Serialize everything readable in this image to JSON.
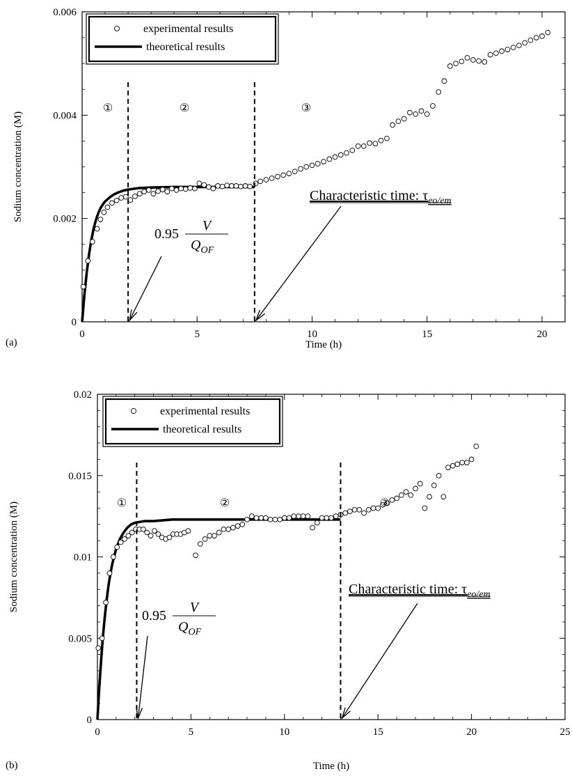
{
  "chart_data": [
    {
      "panel_label": "(a)",
      "type": "scatter",
      "title": "",
      "xlabel": "Time (h)",
      "ylabel": "Sodium concentration (M)",
      "xlim": [
        0,
        21
      ],
      "ylim": [
        0,
        0.006
      ],
      "xticks": [
        "0",
        "5",
        "10",
        "15",
        "20"
      ],
      "yticks": [
        "0",
        "0.002",
        "0.004",
        "0.006"
      ],
      "legend": {
        "position": "top-left",
        "entries": [
          "experimental results",
          "theoretical results"
        ]
      },
      "regions": [
        "①",
        "②",
        "③"
      ],
      "vlines": [
        2.0,
        7.5
      ],
      "annotations": {
        "fraction": {
          "coef": "0.95",
          "num": "V",
          "den": "Q",
          "den_sub": "OF",
          "arrow_to_x": 2.0
        },
        "characteristic": {
          "text": "Characteristic time: ",
          "symbol": "τ",
          "sub": "eo/em",
          "arrow_to_x": 7.5
        }
      },
      "series": [
        {
          "name": "experimental results",
          "style": "open-circle",
          "points": [
            [
              0.05,
              0.00068
            ],
            [
              0.25,
              0.00118
            ],
            [
              0.45,
              0.00155
            ],
            [
              0.65,
              0.0018
            ],
            [
              0.8,
              0.00198
            ],
            [
              0.95,
              0.00212
            ],
            [
              1.1,
              0.00222
            ],
            [
              1.3,
              0.0023
            ],
            [
              1.5,
              0.00235
            ],
            [
              1.7,
              0.0024
            ],
            [
              1.9,
              0.00242
            ],
            [
              2.1,
              0.00236
            ],
            [
              2.3,
              0.00243
            ],
            [
              2.5,
              0.00248
            ],
            [
              2.7,
              0.00252
            ],
            [
              2.9,
              0.00255
            ],
            [
              3.1,
              0.00248
            ],
            [
              3.3,
              0.00253
            ],
            [
              3.5,
              0.00256
            ],
            [
              3.7,
              0.00252
            ],
            [
              3.9,
              0.00258
            ],
            [
              4.1,
              0.00255
            ],
            [
              4.3,
              0.00258
            ],
            [
              4.5,
              0.00257
            ],
            [
              4.7,
              0.00259
            ],
            [
              4.9,
              0.00258
            ],
            [
              5.1,
              0.00268
            ],
            [
              5.3,
              0.00265
            ],
            [
              5.5,
              0.00261
            ],
            [
              5.7,
              0.00258
            ],
            [
              5.9,
              0.00263
            ],
            [
              6.1,
              0.00262
            ],
            [
              6.3,
              0.00264
            ],
            [
              6.5,
              0.00263
            ],
            [
              6.7,
              0.00263
            ],
            [
              6.9,
              0.00262
            ],
            [
              7.1,
              0.00263
            ],
            [
              7.3,
              0.00262
            ],
            [
              7.55,
              0.00268
            ],
            [
              7.75,
              0.00272
            ],
            [
              8.0,
              0.00275
            ],
            [
              8.25,
              0.00278
            ],
            [
              8.5,
              0.00281
            ],
            [
              8.75,
              0.00284
            ],
            [
              9.0,
              0.00287
            ],
            [
              9.25,
              0.00291
            ],
            [
              9.5,
              0.00296
            ],
            [
              9.75,
              0.003
            ],
            [
              10.0,
              0.00303
            ],
            [
              10.25,
              0.00306
            ],
            [
              10.5,
              0.0031
            ],
            [
              10.75,
              0.00315
            ],
            [
              11.0,
              0.00319
            ],
            [
              11.25,
              0.00323
            ],
            [
              11.5,
              0.00327
            ],
            [
              11.75,
              0.00332
            ],
            [
              12.0,
              0.0034
            ],
            [
              12.25,
              0.0034
            ],
            [
              12.5,
              0.00346
            ],
            [
              12.75,
              0.00345
            ],
            [
              13.0,
              0.00351
            ],
            [
              13.25,
              0.00355
            ],
            [
              13.5,
              0.00381
            ],
            [
              13.75,
              0.00388
            ],
            [
              14.0,
              0.00393
            ],
            [
              14.25,
              0.00405
            ],
            [
              14.5,
              0.00402
            ],
            [
              14.75,
              0.00408
            ],
            [
              15.0,
              0.00402
            ],
            [
              15.25,
              0.00418
            ],
            [
              15.5,
              0.00445
            ],
            [
              15.75,
              0.00466
            ],
            [
              16.0,
              0.00495
            ],
            [
              16.25,
              0.005
            ],
            [
              16.5,
              0.00504
            ],
            [
              16.75,
              0.00511
            ],
            [
              17.0,
              0.00507
            ],
            [
              17.25,
              0.00505
            ],
            [
              17.5,
              0.00503
            ],
            [
              17.75,
              0.00517
            ],
            [
              18.0,
              0.0052
            ],
            [
              18.25,
              0.00524
            ],
            [
              18.5,
              0.00527
            ],
            [
              18.75,
              0.00531
            ],
            [
              19.0,
              0.00535
            ],
            [
              19.25,
              0.0054
            ],
            [
              19.5,
              0.00545
            ],
            [
              19.75,
              0.0055
            ],
            [
              20.0,
              0.00553
            ],
            [
              20.25,
              0.0056
            ]
          ]
        },
        {
          "name": "theoretical results",
          "style": "thick-line",
          "points": [
            [
              0,
              0
            ],
            [
              0.1,
              0.00052
            ],
            [
              0.2,
              0.00095
            ],
            [
              0.3,
              0.0013
            ],
            [
              0.4,
              0.00158
            ],
            [
              0.5,
              0.0018
            ],
            [
              0.6,
              0.00197
            ],
            [
              0.7,
              0.0021
            ],
            [
              0.8,
              0.0022
            ],
            [
              0.9,
              0.00227
            ],
            [
              1.0,
              0.00233
            ],
            [
              1.2,
              0.00241
            ],
            [
              1.4,
              0.00247
            ],
            [
              1.6,
              0.00251
            ],
            [
              1.8,
              0.00254
            ],
            [
              2.0,
              0.00256
            ],
            [
              2.5,
              0.00259
            ],
            [
              3.0,
              0.0026
            ],
            [
              4.0,
              0.00261
            ],
            [
              5.0,
              0.00261
            ],
            [
              6.0,
              0.00261
            ],
            [
              7.0,
              0.00261
            ],
            [
              7.5,
              0.00261
            ]
          ]
        }
      ]
    },
    {
      "panel_label": "(b)",
      "type": "scatter",
      "title": "",
      "xlabel": "Time (h)",
      "ylabel": "Sodium concentration (M)",
      "xlim": [
        0,
        25
      ],
      "ylim": [
        0,
        0.02
      ],
      "xticks": [
        "0",
        "5",
        "10",
        "15",
        "20",
        "25"
      ],
      "yticks": [
        "0",
        "0.005",
        "0.01",
        "0.015",
        "0.02"
      ],
      "legend": {
        "position": "top-left",
        "entries": [
          "experimental results",
          "theoretical results"
        ]
      },
      "regions": [
        "①",
        "②",
        "③"
      ],
      "vlines": [
        2.1,
        13.0
      ],
      "annotations": {
        "fraction": {
          "coef": "0.95",
          "num": "V",
          "den": "Q",
          "den_sub": "OF",
          "arrow_to_x": 2.1
        },
        "characteristic": {
          "text": "Characteristic time: ",
          "symbol": "τ",
          "sub": "eo/em",
          "arrow_to_x": 13.0
        }
      },
      "series": [
        {
          "name": "experimental results",
          "style": "open-circle",
          "points": [
            [
              0.05,
              0.0044
            ],
            [
              0.25,
              0.005
            ],
            [
              0.45,
              0.0072
            ],
            [
              0.65,
              0.009
            ],
            [
              0.85,
              0.01
            ],
            [
              1.05,
              0.0106
            ],
            [
              1.25,
              0.0109
            ],
            [
              1.45,
              0.0111
            ],
            [
              1.65,
              0.0113
            ],
            [
              1.85,
              0.0115
            ],
            [
              2.05,
              0.0117
            ],
            [
              2.25,
              0.0117
            ],
            [
              2.45,
              0.0117
            ],
            [
              2.65,
              0.0115
            ],
            [
              2.85,
              0.0113
            ],
            [
              3.05,
              0.0116
            ],
            [
              3.25,
              0.0114
            ],
            [
              3.45,
              0.0112
            ],
            [
              3.65,
              0.0111
            ],
            [
              3.85,
              0.0112
            ],
            [
              4.05,
              0.0114
            ],
            [
              4.25,
              0.0114
            ],
            [
              4.45,
              0.0114
            ],
            [
              4.65,
              0.0115
            ],
            [
              4.85,
              0.0116
            ],
            [
              5.25,
              0.0101
            ],
            [
              5.5,
              0.0108
            ],
            [
              5.75,
              0.0111
            ],
            [
              6.0,
              0.0113
            ],
            [
              6.25,
              0.0113
            ],
            [
              6.5,
              0.0115
            ],
            [
              6.75,
              0.0117
            ],
            [
              7.0,
              0.0117
            ],
            [
              7.25,
              0.0118
            ],
            [
              7.5,
              0.0119
            ],
            [
              7.75,
              0.012
            ],
            [
              8.0,
              0.0123
            ],
            [
              8.25,
              0.0125
            ],
            [
              8.5,
              0.0124
            ],
            [
              8.75,
              0.0124
            ],
            [
              9.0,
              0.0124
            ],
            [
              9.25,
              0.0123
            ],
            [
              9.5,
              0.0123
            ],
            [
              9.75,
              0.0123
            ],
            [
              10.0,
              0.0124
            ],
            [
              10.25,
              0.0124
            ],
            [
              10.5,
              0.0125
            ],
            [
              10.75,
              0.0125
            ],
            [
              11.0,
              0.0125
            ],
            [
              11.25,
              0.0125
            ],
            [
              11.5,
              0.0118
            ],
            [
              11.75,
              0.0121
            ],
            [
              12.0,
              0.0124
            ],
            [
              12.25,
              0.0124
            ],
            [
              12.5,
              0.0124
            ],
            [
              12.75,
              0.0125
            ],
            [
              13.0,
              0.0126
            ],
            [
              13.25,
              0.0127
            ],
            [
              13.5,
              0.0128
            ],
            [
              13.75,
              0.0129
            ],
            [
              14.0,
              0.0129
            ],
            [
              14.25,
              0.0127
            ],
            [
              14.5,
              0.0129
            ],
            [
              14.75,
              0.013
            ],
            [
              15.0,
              0.013
            ],
            [
              15.25,
              0.0132
            ],
            [
              15.5,
              0.0133
            ],
            [
              15.75,
              0.0135
            ],
            [
              16.0,
              0.0136
            ],
            [
              16.25,
              0.0138
            ],
            [
              16.5,
              0.014
            ],
            [
              16.75,
              0.0138
            ],
            [
              17.0,
              0.0142
            ],
            [
              17.25,
              0.0145
            ],
            [
              17.5,
              0.013
            ],
            [
              17.75,
              0.0137
            ],
            [
              18.0,
              0.0144
            ],
            [
              18.25,
              0.015
            ],
            [
              18.5,
              0.0137
            ],
            [
              18.75,
              0.0155
            ],
            [
              19.0,
              0.0156
            ],
            [
              19.25,
              0.0157
            ],
            [
              19.5,
              0.0158
            ],
            [
              19.75,
              0.0158
            ],
            [
              20.0,
              0.016
            ],
            [
              20.25,
              0.0168
            ]
          ]
        },
        {
          "name": "theoretical results",
          "style": "thick-line",
          "points": [
            [
              0,
              0
            ],
            [
              0.1,
              0.002
            ],
            [
              0.2,
              0.0037
            ],
            [
              0.3,
              0.0052
            ],
            [
              0.4,
              0.0064
            ],
            [
              0.5,
              0.0074
            ],
            [
              0.6,
              0.0083
            ],
            [
              0.7,
              0.009
            ],
            [
              0.8,
              0.0096
            ],
            [
              1.0,
              0.0105
            ],
            [
              1.2,
              0.0111
            ],
            [
              1.4,
              0.0115
            ],
            [
              1.6,
              0.0118
            ],
            [
              1.8,
              0.012
            ],
            [
              2.0,
              0.0121
            ],
            [
              2.5,
              0.0122
            ],
            [
              3.0,
              0.0122
            ],
            [
              4.0,
              0.0123
            ],
            [
              6.0,
              0.0123
            ],
            [
              8.0,
              0.0123
            ],
            [
              10.0,
              0.0123
            ],
            [
              12.0,
              0.0123
            ],
            [
              13.0,
              0.0123
            ]
          ]
        }
      ]
    }
  ]
}
